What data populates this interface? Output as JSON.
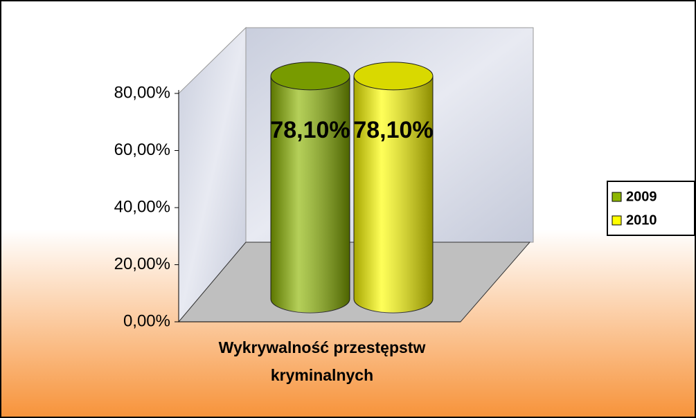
{
  "chart_data": {
    "type": "bar",
    "categories": [
      "Wykrywalność przestępstw kryminalnych"
    ],
    "series": [
      {
        "name": "2009",
        "color": "#8db600",
        "values": [
          78.1
        ],
        "value_labels": [
          "78,10%"
        ]
      },
      {
        "name": "2010",
        "color": "#ffff00",
        "values": [
          78.1
        ],
        "value_labels": [
          "78,10%"
        ]
      }
    ],
    "ylim": [
      0,
      80
    ],
    "yticks": [
      {
        "value": 0,
        "label": "0,00%"
      },
      {
        "value": 20,
        "label": "20,00%"
      },
      {
        "value": 40,
        "label": "40,00%"
      },
      {
        "value": 60,
        "label": "60,00%"
      },
      {
        "value": 80,
        "label": "80,00%"
      }
    ],
    "legend": "right"
  }
}
